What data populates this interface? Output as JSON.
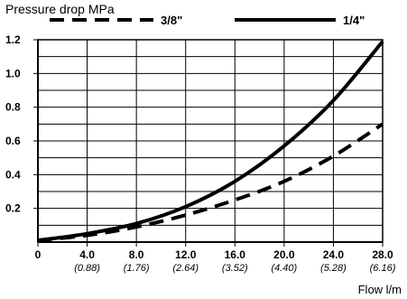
{
  "chart_data": {
    "type": "line",
    "ylabel": "Pressure drop MPa",
    "xlabel": "Flow l/m",
    "xlim": [
      0,
      28
    ],
    "ylim": [
      0,
      1.2
    ],
    "grid": true,
    "legend_position": "top",
    "x_ticks": [
      {
        "value": 0,
        "label": "0",
        "sub": ""
      },
      {
        "value": 4,
        "label": "4.0",
        "sub": "(0.88)"
      },
      {
        "value": 8,
        "label": "8.0",
        "sub": "(1.76)"
      },
      {
        "value": 12,
        "label": "12.0",
        "sub": "(2.64)"
      },
      {
        "value": 16,
        "label": "16.0",
        "sub": "(3.52)"
      },
      {
        "value": 20,
        "label": "20.0",
        "sub": "(4.40)"
      },
      {
        "value": 24,
        "label": "24.0",
        "sub": "(5.28)"
      },
      {
        "value": 28,
        "label": "28.0",
        "sub": "(6.16)"
      }
    ],
    "y_ticks": [
      {
        "value": 0.2,
        "label": "0.2"
      },
      {
        "value": 0.4,
        "label": "0.4"
      },
      {
        "value": 0.6,
        "label": "0.6"
      },
      {
        "value": 0.8,
        "label": "0.8"
      },
      {
        "value": 1.0,
        "label": "1.0"
      },
      {
        "value": 1.2,
        "label": "1.2"
      }
    ],
    "series": [
      {
        "name": "3/8\"",
        "style": "dashed",
        "color": "#000000",
        "x": [
          0,
          4,
          8,
          12,
          16,
          20,
          24,
          28
        ],
        "y": [
          0.01,
          0.04,
          0.09,
          0.16,
          0.25,
          0.36,
          0.51,
          0.7
        ]
      },
      {
        "name": "1/4\"",
        "style": "solid",
        "color": "#000000",
        "x": [
          0,
          4,
          8,
          12,
          16,
          20,
          24,
          28
        ],
        "y": [
          0.01,
          0.05,
          0.11,
          0.21,
          0.36,
          0.57,
          0.84,
          1.19
        ]
      }
    ]
  }
}
